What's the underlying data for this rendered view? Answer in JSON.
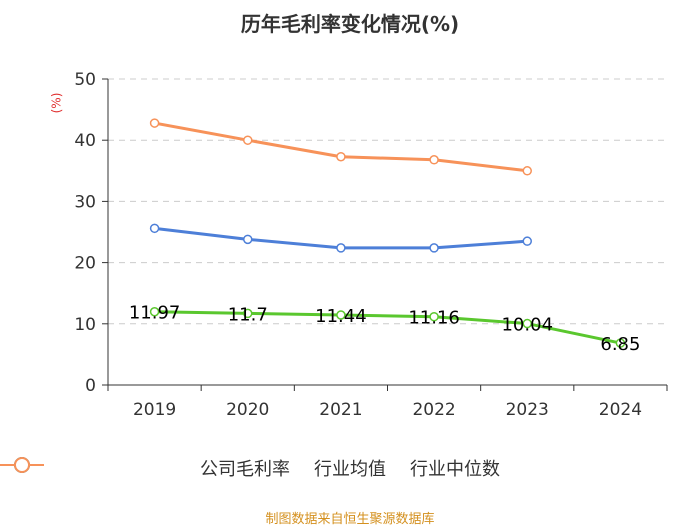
{
  "chart_data": {
    "type": "line",
    "title": "历年毛利率变化情况(%)",
    "ylabel": "(%)",
    "xlabel": "",
    "categories": [
      "2019",
      "2020",
      "2021",
      "2022",
      "2023",
      "2024"
    ],
    "ylim": [
      0,
      50
    ],
    "yticks": [
      0,
      10,
      20,
      30,
      40,
      50
    ],
    "grid": true,
    "legend_position": "bottom",
    "series": [
      {
        "name": "公司毛利率",
        "color": "#5ac72e",
        "values": [
          11.97,
          11.7,
          11.44,
          11.16,
          10.04,
          6.85
        ],
        "labels": [
          "11.97",
          "11.7",
          "11.44",
          "11.16",
          "10.04",
          "6.85"
        ]
      },
      {
        "name": "行业均值",
        "color": "#4d7fd8",
        "values": [
          25.6,
          23.8,
          22.4,
          22.4,
          23.5,
          null
        ]
      },
      {
        "name": "行业中位数",
        "color": "#f79259",
        "values": [
          42.8,
          40.0,
          37.3,
          36.8,
          35.0,
          null
        ]
      }
    ]
  },
  "footer": "制图数据来自恒生聚源数据库"
}
